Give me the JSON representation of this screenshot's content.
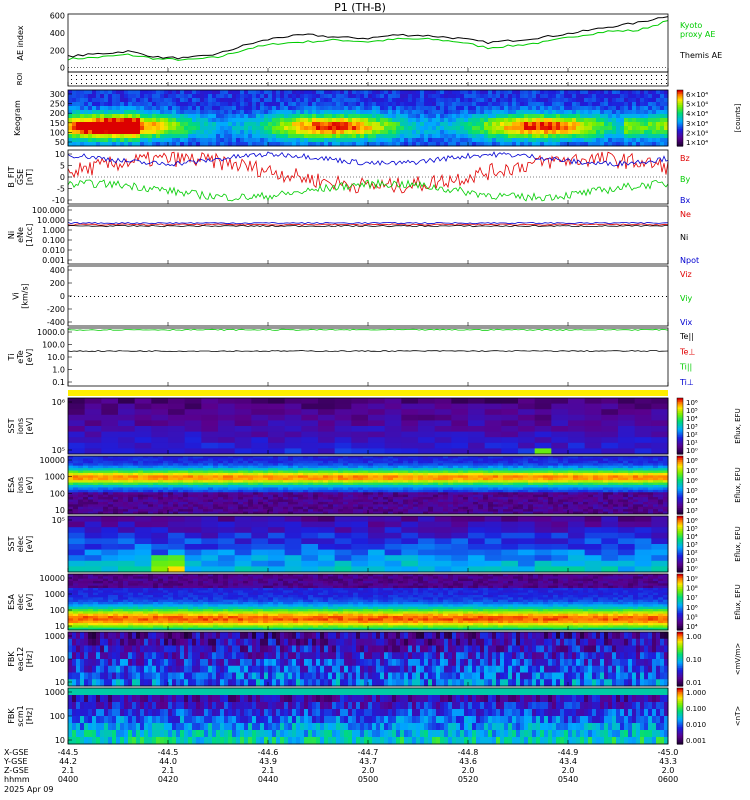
{
  "title": "P1  (TH-B)",
  "colors": {
    "red": "#e00000",
    "green": "#00cc00",
    "blue": "#0000d0",
    "black": "#000000",
    "bar": "#ffee00"
  },
  "chart_data": [
    {
      "type": "line",
      "panel": "ae",
      "ylabel": "AE index",
      "yticks": [
        "600",
        "400",
        "200",
        "0"
      ],
      "ylim": [
        -50,
        620
      ],
      "series": [
        {
          "name": "Kyoto proxy AE",
          "label_lines": [
            "Kyoto",
            "proxy AE"
          ],
          "color": "#00cc00",
          "x": [
            0,
            0.05,
            0.1,
            0.15,
            0.2,
            0.25,
            0.3,
            0.35,
            0.4,
            0.45,
            0.5,
            0.55,
            0.6,
            0.65,
            0.7,
            0.75,
            0.8,
            0.85,
            0.9,
            0.95,
            1.0
          ],
          "values": [
            100,
            120,
            150,
            100,
            90,
            120,
            220,
            280,
            300,
            320,
            300,
            330,
            330,
            300,
            230,
            260,
            300,
            370,
            420,
            430,
            540
          ]
        },
        {
          "name": "Themis AE",
          "label_lines": [
            "Themis AE"
          ],
          "color": "#000000",
          "x": [
            0,
            0.05,
            0.1,
            0.15,
            0.2,
            0.25,
            0.3,
            0.35,
            0.4,
            0.45,
            0.5,
            0.55,
            0.6,
            0.65,
            0.7,
            0.75,
            0.8,
            0.85,
            0.9,
            0.95,
            1.0
          ],
          "values": [
            130,
            160,
            190,
            120,
            110,
            160,
            270,
            350,
            380,
            350,
            340,
            380,
            370,
            340,
            290,
            320,
            360,
            410,
            470,
            520,
            600
          ]
        }
      ]
    },
    {
      "type": "heatmap",
      "panel": "roi",
      "ylabel": "ROI"
    },
    {
      "type": "heatmap",
      "panel": "keogram",
      "ylabel": "Keogram",
      "yticks": [
        "300",
        "250",
        "200",
        "150",
        "100",
        "50"
      ],
      "colorbar": {
        "label": "[counts]",
        "ticks": [
          "6×10⁴",
          "5×10⁴",
          "4×10⁴",
          "3×10⁴",
          "2×10⁴",
          "1×10⁴"
        ]
      }
    },
    {
      "type": "line",
      "panel": "bfield",
      "ylabel_lines": [
        "B_FIT",
        "GSE",
        "[nT]"
      ],
      "yticks": [
        "10",
        "5",
        "0",
        "-5",
        "-10"
      ],
      "ylim": [
        -12,
        12
      ],
      "series": [
        {
          "name": "Bz",
          "color": "#e00000",
          "base": 2,
          "amp": 6
        },
        {
          "name": "By",
          "color": "#00cc00",
          "base": -6,
          "amp": 3
        },
        {
          "name": "Bx",
          "color": "#0000d0",
          "base": 8,
          "amp": 2
        }
      ]
    },
    {
      "type": "line",
      "panel": "density",
      "ylabel_lines": [
        "Ni",
        "eNe",
        "[1/cc]"
      ],
      "yticks": [
        "100.000",
        "10.000",
        "1.000",
        "0.100",
        "0.010",
        "0.001"
      ],
      "ylog": true,
      "series": [
        {
          "name": "Ne",
          "color": "#e00000",
          "level": 3.5
        },
        {
          "name": "Ni",
          "color": "#000000",
          "level": 2.5
        },
        {
          "name": "Npot",
          "color": "#0000d0",
          "level": 5
        }
      ]
    },
    {
      "type": "line",
      "panel": "velocity",
      "ylabel_lines": [
        "Vi",
        "[km/s]"
      ],
      "yticks": [
        "400",
        "200",
        "0",
        "-200",
        "-400"
      ],
      "ylim": [
        -500,
        500
      ],
      "series": [
        {
          "name": "Viz",
          "color": "#e00000"
        },
        {
          "name": "Viy",
          "color": "#00cc00"
        },
        {
          "name": "Vix",
          "color": "#0000d0"
        }
      ]
    },
    {
      "type": "line",
      "panel": "temperature",
      "ylabel_lines": [
        "Ti",
        "eTe",
        "[eV]"
      ],
      "yticks": [
        "1000.0",
        "100.0",
        "10.0",
        "1.0",
        "0.1"
      ],
      "ylog": true,
      "series": [
        {
          "name": "Te||",
          "color": "#000000",
          "level": 1500
        },
        {
          "name": "Te⊥",
          "color": "#e00000",
          "level": 1500
        },
        {
          "name": "Ti||",
          "color": "#00cc00",
          "level": 1500
        },
        {
          "name": "Ti⊥",
          "color": "#0000d0",
          "level": 30
        }
      ]
    },
    {
      "type": "heatmap",
      "panel": "sst_ion",
      "ylabel_lines": [
        "SST",
        "ions",
        "[eV]"
      ],
      "yticks": [
        "10⁶",
        "10⁵"
      ],
      "colorbar": {
        "label": "Eflux, EFU",
        "ticks": [
          "10⁶",
          "10⁵",
          "10⁴",
          "10³",
          "10²",
          "10¹",
          "10⁰"
        ]
      }
    },
    {
      "type": "heatmap",
      "panel": "esa_ion",
      "ylabel_lines": [
        "ESA",
        "ions",
        "[eV]"
      ],
      "yticks": [
        "10000",
        "1000",
        "100",
        "10"
      ],
      "colorbar": {
        "label": "Eflux, EFU",
        "ticks": [
          "10⁸",
          "10⁷",
          "10⁶",
          "10⁵",
          "10⁴",
          "10³"
        ]
      }
    },
    {
      "type": "heatmap",
      "panel": "sst_elec",
      "ylabel_lines": [
        "SST",
        "elec",
        "[eV]"
      ],
      "yticks": [
        "10⁵"
      ],
      "colorbar": {
        "label": "Eflux, EFU",
        "ticks": [
          "10⁶",
          "10⁵",
          "10⁴",
          "10³",
          "10²",
          "10¹",
          "10⁰"
        ]
      }
    },
    {
      "type": "heatmap",
      "panel": "esa_elec",
      "ylabel_lines": [
        "ESA",
        "elec",
        "[eV]"
      ],
      "yticks": [
        "10000",
        "1000",
        "100",
        "10"
      ],
      "colorbar": {
        "label": "Eflux, EFU",
        "ticks": [
          "10⁹",
          "10⁸",
          "10⁷",
          "10⁶",
          "10⁵",
          "10⁴"
        ]
      }
    },
    {
      "type": "heatmap",
      "panel": "fbk_e",
      "ylabel_lines": [
        "FBK",
        "eac12",
        "[Hz]"
      ],
      "yticks": [
        "1000",
        "100",
        "10"
      ],
      "colorbar": {
        "label": "<mV/m>",
        "ticks": [
          "1.00",
          "0.10",
          "0.01"
        ]
      }
    },
    {
      "type": "heatmap",
      "panel": "fbk_b",
      "ylabel_lines": [
        "FBK",
        "scm1",
        "[Hz]"
      ],
      "yticks": [
        "1000",
        "100",
        "10"
      ],
      "colorbar": {
        "label": "<nT>",
        "ticks": [
          "1.000",
          "0.100",
          "0.010",
          "0.001"
        ]
      }
    }
  ],
  "xaxis": {
    "row_labels": [
      "X-GSE",
      "Y-GSE",
      "Z-GSE",
      "hhmm",
      "2025 Apr 09"
    ],
    "columns": [
      [
        "-44.5",
        "44.2",
        "2.1",
        "0400"
      ],
      [
        "-44.5",
        "44.0",
        "2.1",
        "0420"
      ],
      [
        "-44.6",
        "43.9",
        "2.1",
        "0440"
      ],
      [
        "-44.7",
        "43.7",
        "2.0",
        "0500"
      ],
      [
        "-44.8",
        "43.6",
        "2.0",
        "0520"
      ],
      [
        "-44.9",
        "43.4",
        "2.0",
        "0540"
      ],
      [
        "-45.0",
        "43.3",
        "2.0",
        "0600"
      ]
    ]
  }
}
